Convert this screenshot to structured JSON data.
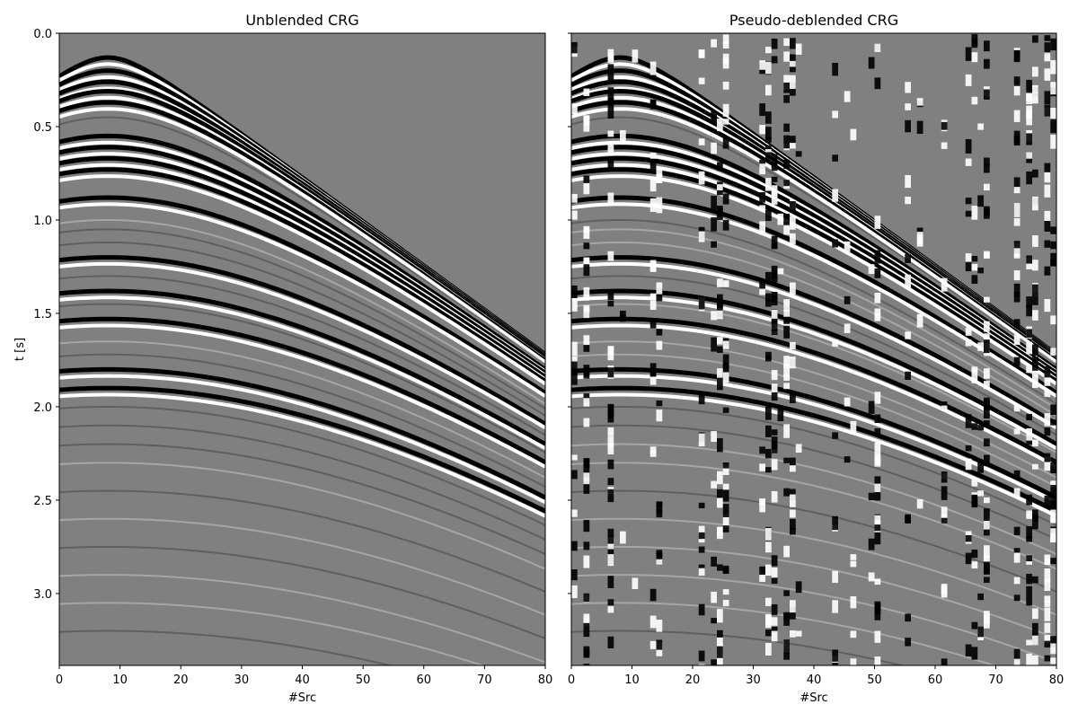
{
  "chart_data": [
    {
      "type": "image",
      "title": "Unblended CRG",
      "xlabel": "#Src",
      "ylabel": "t [s]",
      "xlim": [
        0,
        80
      ],
      "xticks": [
        0,
        10,
        20,
        30,
        40,
        50,
        60,
        70,
        80
      ],
      "ylim": [
        3.385,
        0
      ],
      "yticks": [
        {
          "value": 0,
          "label": "0.0"
        },
        0.5,
        {
          "value": 1,
          "label": "1.0"
        },
        1.5,
        {
          "value": 2,
          "label": "2.0"
        },
        2.5,
        {
          "value": 3,
          "label": "3.0"
        }
      ],
      "cmap": "gray"
    },
    {
      "type": "image",
      "title": "Pseudo-deblended CRG",
      "xlabel": "#Src",
      "xlim": [
        0,
        80
      ],
      "xticks": [
        0,
        10,
        20,
        30,
        40,
        50,
        60,
        70,
        80
      ],
      "ylim": [
        3.385,
        0
      ],
      "sharey": true,
      "cmap": "gray",
      "noise": true
    }
  ]
}
